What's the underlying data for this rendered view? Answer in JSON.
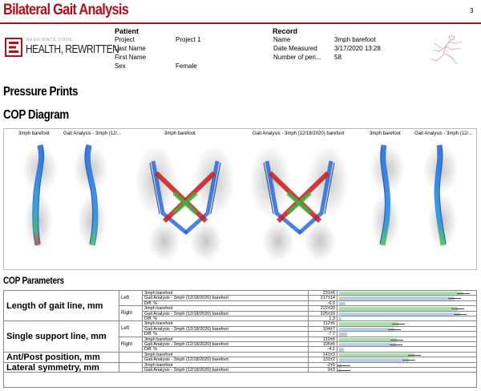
{
  "header": {
    "title": "Bilateral Gait Analysis",
    "page_number": "3"
  },
  "logo": {
    "small_text": "RESILIENCE CODE",
    "big_text": "HEALTH, REWRITTEN"
  },
  "patient": {
    "heading": "Patient",
    "rows": [
      {
        "label": "Project",
        "value": "Project 1"
      },
      {
        "label": "Last Name",
        "value": ""
      },
      {
        "label": "First Name",
        "value": ""
      },
      {
        "label": "Sex",
        "value": "Female"
      }
    ]
  },
  "record": {
    "heading": "Record",
    "rows": [
      {
        "label": "Name",
        "value": "3mph barefoot"
      },
      {
        "label": "Date Measured",
        "value": "3/17/2020 13:28"
      },
      {
        "label": "Number of peri...",
        "value": "58"
      }
    ]
  },
  "sections": {
    "pressure_prints": "Pressure Prints",
    "cop_diagram": "COP Diagram",
    "cop_parameters": "COP Parameters"
  },
  "cop_captions": [
    "3mph barefoot",
    "Gait Analysis - 3mph (12/...",
    "3mph barefoot",
    "Gait Analysis - 3mph (12/18/2020) barefoot",
    "3mph barefoot",
    "Gait Analysis - 3mph (12/..."
  ],
  "colors": {
    "brand_red": "#b0101c",
    "bar_green": "#a8e0a8",
    "bar_blue": "#b8cfe8",
    "bar_gray": "#c8c8c8"
  },
  "parameters": [
    {
      "name": "Length of gait line, mm",
      "groups": [
        {
          "side": "Left",
          "rows": [
            {
              "label": "3mph barefoot",
              "value": "231±6",
              "bar": 0.92,
              "kind": "green"
            },
            {
              "label": "Gait Analysis - 3mph (12/18/2020) barefoot",
              "value": "217±14",
              "bar": 0.86,
              "kind": "blue"
            },
            {
              "label": "Diff. %",
              "value": "-6.0",
              "bar": 0.05,
              "kind": "gray"
            }
          ]
        },
        {
          "side": "Right",
          "rows": [
            {
              "label": "3mph barefoot",
              "value": "222±20",
              "bar": 0.88,
              "kind": "green"
            },
            {
              "label": "Gait Analysis - 3mph (12/18/2020) barefoot",
              "value": "225±10",
              "bar": 0.9,
              "kind": "blue"
            },
            {
              "label": "Diff. %",
              "value": "1.3",
              "bar": 0.015,
              "kind": "gray"
            }
          ]
        }
      ]
    },
    {
      "name": "Single support line, mm",
      "groups": [
        {
          "side": "Left",
          "rows": [
            {
              "label": "3mph barefoot",
              "value": "112±6",
              "bar": 0.44,
              "kind": "green"
            },
            {
              "label": "Gait Analysis - 3mph (12/18/2020) barefoot",
              "value": "104±7",
              "bar": 0.41,
              "kind": "blue"
            },
            {
              "label": "Diff. %",
              "value": "-7.7",
              "bar": 0.06,
              "kind": "gray"
            }
          ]
        },
        {
          "side": "Right",
          "rows": [
            {
              "label": "3mph barefoot",
              "value": "110±6",
              "bar": 0.43,
              "kind": "green"
            },
            {
              "label": "Gait Analysis - 3mph (12/18/2020) barefoot",
              "value": "105±6",
              "bar": 0.42,
              "kind": "blue"
            },
            {
              "label": "Diff. %",
              "value": "-4.1",
              "bar": 0.035,
              "kind": "gray"
            }
          ]
        }
      ]
    },
    {
      "name": "Ant/Post position, mm",
      "groups": [
        {
          "side": "",
          "rows": [
            {
              "label": "3mph barefoot",
              "value": "141±3",
              "bar": 0.56,
              "kind": "green"
            },
            {
              "label": "Gait Analysis - 3mph (12/18/2020) barefoot",
              "value": "131±2",
              "bar": 0.52,
              "kind": "blue"
            }
          ]
        }
      ]
    },
    {
      "name": "Lateral symmetry, mm",
      "groups": [
        {
          "side": "",
          "rows": [
            {
              "label": "3mph barefoot",
              "value": "-2±5",
              "bar": 0.02,
              "kind": "green"
            },
            {
              "label": "Gait Analysis - 3mph (12/18/2020) barefoot",
              "value": "0±3",
              "bar": 0.01,
              "kind": "blue"
            }
          ]
        }
      ]
    }
  ]
}
